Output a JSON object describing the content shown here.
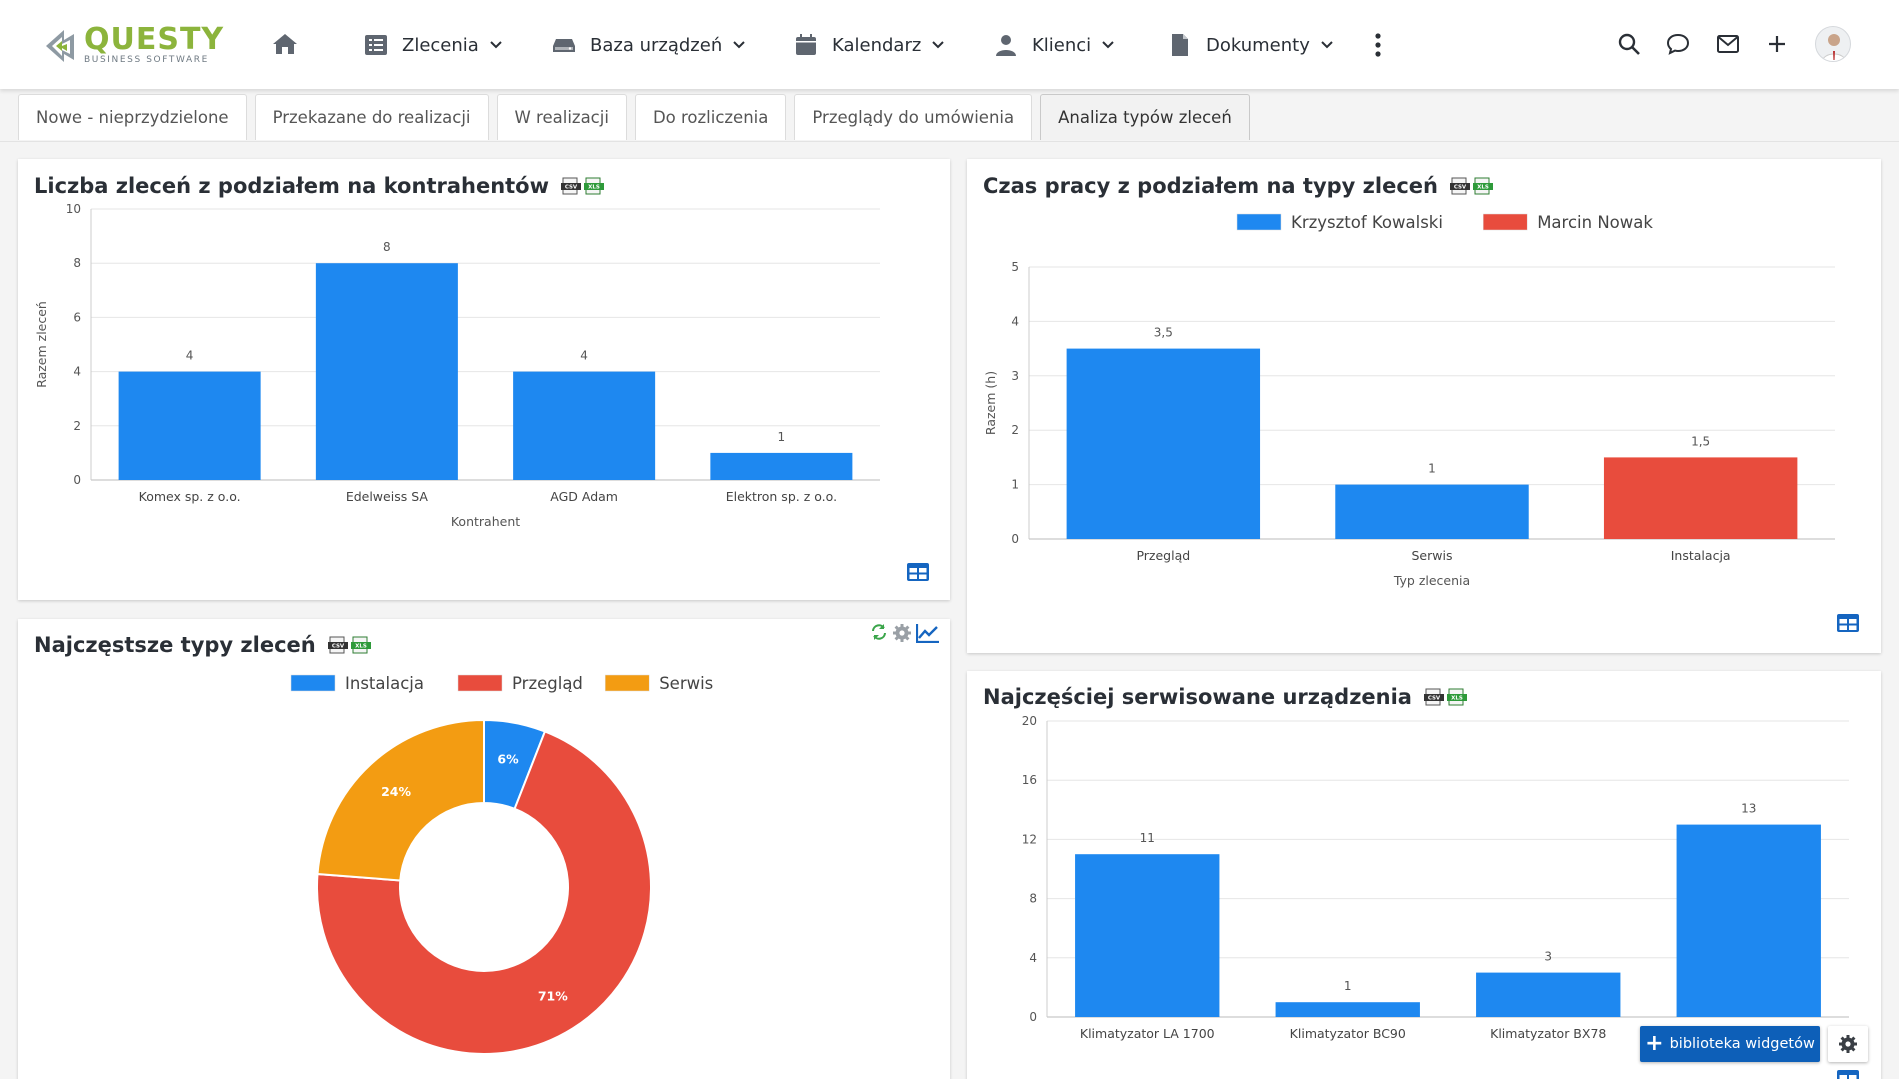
{
  "app": {
    "logo_name": "QUESTY",
    "logo_sub": "BUSINESS SOFTWARE"
  },
  "nav": {
    "items": [
      {
        "label": "Zlecenia",
        "icon": "list-icon"
      },
      {
        "label": "Baza urządzeń",
        "icon": "drive-icon"
      },
      {
        "label": "Kalendarz",
        "icon": "calendar-icon"
      },
      {
        "label": "Klienci",
        "icon": "user-icon"
      },
      {
        "label": "Dokumenty",
        "icon": "document-icon"
      }
    ],
    "right_icons": [
      "search-icon",
      "chat-icon",
      "mail-icon",
      "plus-icon"
    ]
  },
  "tabs": [
    {
      "label": "Nowe - nieprzydzielone",
      "active": false
    },
    {
      "label": "Przekazane do realizacji",
      "active": false
    },
    {
      "label": "W realizacji",
      "active": false
    },
    {
      "label": "Do rozliczenia",
      "active": false
    },
    {
      "label": "Przeglądy do umówienia",
      "active": false
    },
    {
      "label": "Analiza typów zleceń",
      "active": true
    }
  ],
  "colors": {
    "blue": "#1e88f0",
    "red": "#e84c3d",
    "orange": "#f39c12"
  },
  "panels": {
    "p1": {
      "title": "Liczba zleceń z podziałem na kontrahentów"
    },
    "p2": {
      "title": "Czas pracy z podziałem na typy zleceń"
    },
    "p3": {
      "title": "Najczęstsze typy zleceń"
    },
    "p4": {
      "title": "Najczęściej serwisowane urządzenia"
    }
  },
  "library_button": "biblioteka widgetów",
  "chart_data": [
    {
      "type": "bar",
      "title": "Liczba zleceń z podziałem na kontrahentów",
      "categories": [
        "Komex sp. z o.o.",
        "Edelweiss SA",
        "AGD Adam",
        "Elektron sp. z o.o."
      ],
      "values": [
        4,
        8,
        4,
        1
      ],
      "value_labels": [
        "4",
        "8",
        "4",
        "1"
      ],
      "xlabel": "Kontrahent",
      "ylabel": "Razem zleceń",
      "ylim": [
        0,
        10
      ],
      "yticks": [
        "0",
        "2",
        "4",
        "6",
        "8",
        "10"
      ],
      "ytick_values": [
        0,
        2,
        4,
        6,
        8,
        10
      ],
      "grid": true
    },
    {
      "type": "bar",
      "title": "Czas pracy z podziałem na typy zleceń",
      "categories": [
        "Przegląd",
        "Serwis",
        "Instalacja"
      ],
      "series": [
        {
          "name": "Krzysztof Kowalski",
          "values": [
            3.5,
            1,
            null
          ]
        },
        {
          "name": "Marcin Nowak",
          "values": [
            null,
            null,
            1.5
          ]
        }
      ],
      "value_labels": [
        "3,5",
        "1",
        "1,5"
      ],
      "xlabel": "Typ zlecenia",
      "ylabel": "Razem (h)",
      "ylim": [
        0,
        5
      ],
      "yticks": [
        "0",
        "1",
        "2",
        "3",
        "4",
        "5"
      ],
      "ytick_values": [
        0,
        1,
        2,
        3,
        4,
        5
      ],
      "legend": "top",
      "grid": true
    },
    {
      "type": "pie",
      "title": "Najczęstsze typy zleceń",
      "categories": [
        "Instalacja",
        "Przegląd",
        "Serwis"
      ],
      "values": [
        6,
        71,
        24
      ],
      "value_labels": [
        "6%",
        "71%",
        "24%"
      ],
      "donut": true,
      "legend": "top"
    },
    {
      "type": "bar",
      "title": "Najczęściej serwisowane urządzenia",
      "categories": [
        "Klimatyzator LA 1700",
        "Klimatyzator BC90",
        "Klimatyzator BX78",
        ""
      ],
      "values": [
        11,
        1,
        3,
        13
      ],
      "value_labels": [
        "11",
        "1",
        "3",
        "13"
      ],
      "ylim": [
        0,
        20
      ],
      "yticks": [
        "0",
        "4",
        "8",
        "12",
        "16",
        "20"
      ],
      "ytick_values": [
        0,
        4,
        8,
        12,
        16,
        20
      ],
      "grid": true
    }
  ]
}
